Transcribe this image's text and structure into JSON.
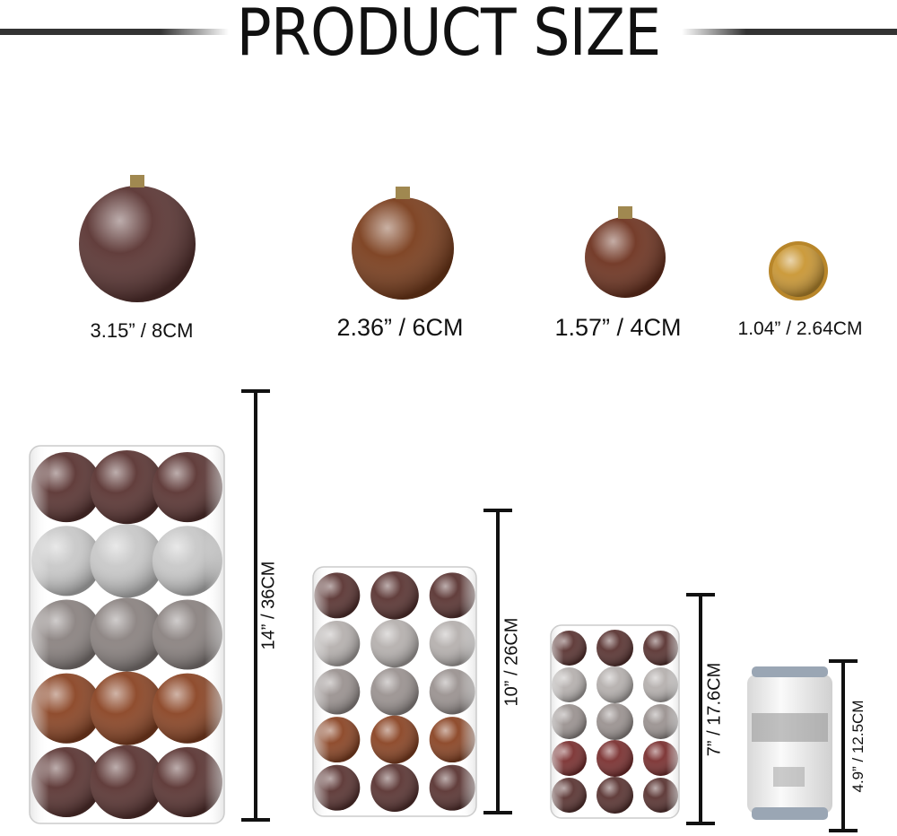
{
  "title": "PRODUCT SIZE",
  "ornaments": [
    {
      "label": "3.15” / 8CM",
      "color": "#5a3432",
      "finish": "shiny"
    },
    {
      "label": "2.36” / 6CM",
      "color": "#7a3d1c",
      "finish": "matte"
    },
    {
      "label": "1.57” / 4CM",
      "color": "#6e3320",
      "finish": "matte"
    },
    {
      "label": "1.04” / 2.64CM",
      "color": "#c99633",
      "finish": "coin"
    }
  ],
  "containers": [
    {
      "label": "14” / 36CM",
      "rows": [
        "#5a3432",
        "#c8c8c8",
        "#8a8280",
        "#8a4424",
        "#5a3432"
      ]
    },
    {
      "label": "10” / 26CM",
      "rows": [
        "#5a3432",
        "#b5b0ae",
        "#9a9290",
        "#8a4424",
        "#5a3432"
      ]
    },
    {
      "label": "7” / 17.6CM",
      "rows": [
        "#5a3432",
        "#b5b0ae",
        "#9a9290",
        "#7a3030",
        "#5a3432"
      ]
    },
    {
      "label": "4.9” / 12.5CM",
      "item": "can"
    }
  ]
}
